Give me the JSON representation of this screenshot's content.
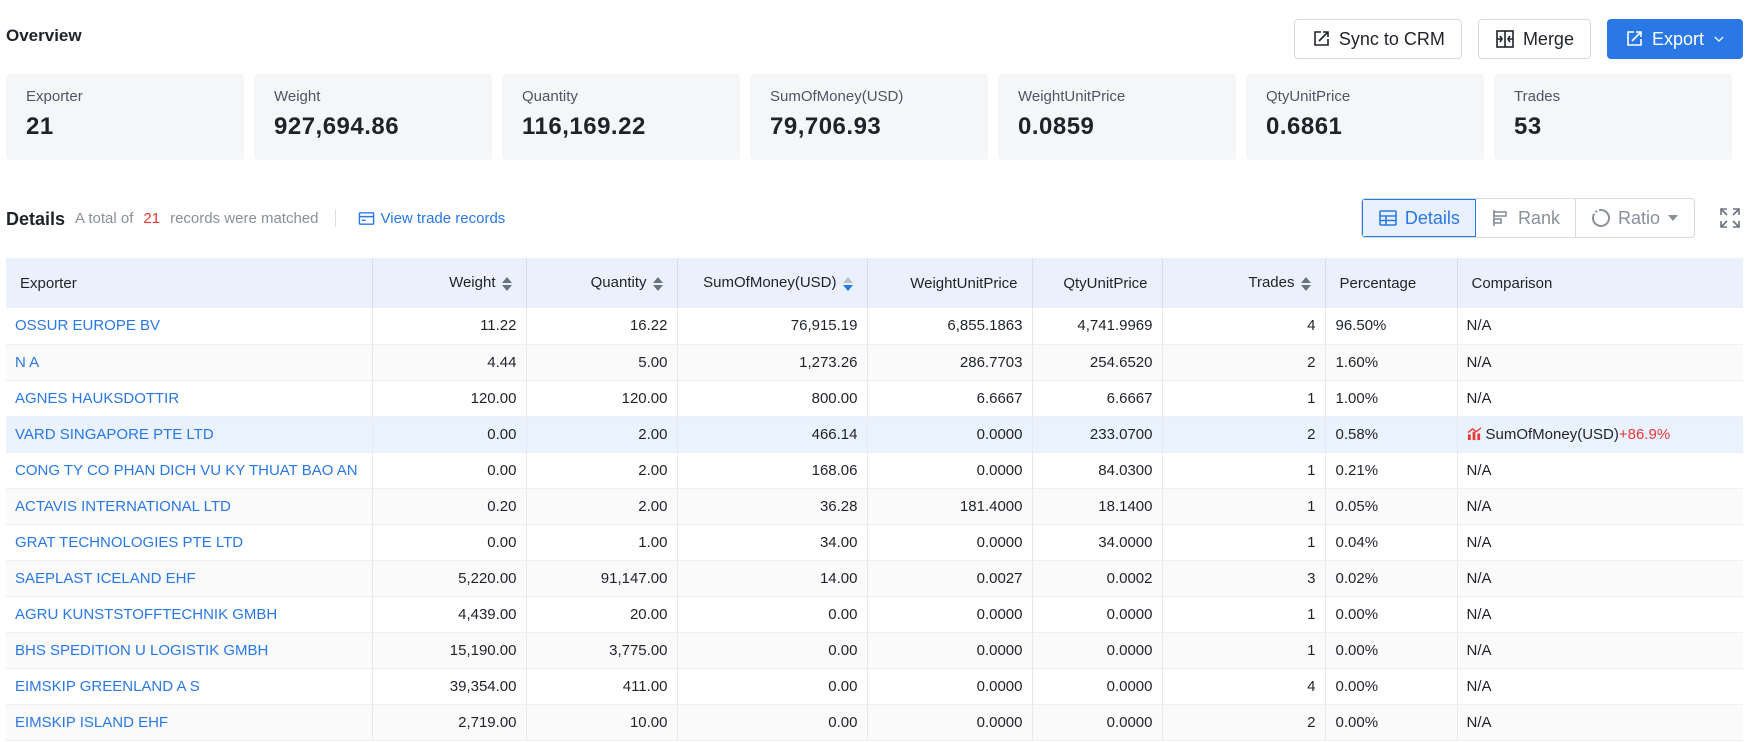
{
  "overview": {
    "title": "Overview"
  },
  "actions": {
    "sync": "Sync to CRM",
    "merge": "Merge",
    "export": "Export"
  },
  "stats": [
    {
      "label": "Exporter",
      "value": "21"
    },
    {
      "label": "Weight",
      "value": "927,694.86"
    },
    {
      "label": "Quantity",
      "value": "116,169.22"
    },
    {
      "label": "SumOfMoney(USD)",
      "value": "79,706.93"
    },
    {
      "label": "WeightUnitPrice",
      "value": "0.0859"
    },
    {
      "label": "QtyUnitPrice",
      "value": "0.6861"
    },
    {
      "label": "Trades",
      "value": "53"
    }
  ],
  "details": {
    "title": "Details",
    "match_prefix": "A total of",
    "match_count": "21",
    "match_suffix": "records were matched",
    "view_link": "View trade records",
    "views": {
      "details": "Details",
      "rank": "Rank",
      "ratio": "Ratio"
    }
  },
  "table": {
    "headers": {
      "exporter": "Exporter",
      "weight": "Weight",
      "quantity": "Quantity",
      "sum": "SumOfMoney(USD)",
      "wup": "WeightUnitPrice",
      "qup": "QtyUnitPrice",
      "trades": "Trades",
      "percentage": "Percentage",
      "comparison": "Comparison"
    },
    "rows": [
      {
        "exporter": "OSSUR EUROPE BV",
        "weight": "11.22",
        "quantity": "16.22",
        "sum": "76,915.19",
        "wup": "6,855.1863",
        "qup": "4,741.9969",
        "trades": "4",
        "percentage": "96.50%",
        "comparison": "N/A"
      },
      {
        "exporter": "N A",
        "weight": "4.44",
        "quantity": "5.00",
        "sum": "1,273.26",
        "wup": "286.7703",
        "qup": "254.6520",
        "trades": "2",
        "percentage": "1.60%",
        "comparison": "N/A"
      },
      {
        "exporter": "AGNES HAUKSDOTTIR",
        "weight": "120.00",
        "quantity": "120.00",
        "sum": "800.00",
        "wup": "6.6667",
        "qup": "6.6667",
        "trades": "1",
        "percentage": "1.00%",
        "comparison": "N/A"
      },
      {
        "exporter": "VARD SINGAPORE PTE LTD",
        "weight": "0.00",
        "quantity": "2.00",
        "sum": "466.14",
        "wup": "0.0000",
        "qup": "233.0700",
        "trades": "2",
        "percentage": "0.58%",
        "comparison": "SumOfMoney(USD)",
        "comparison_change": "+86.9%"
      },
      {
        "exporter": "CONG TY CO PHAN DICH VU KY THUAT BAO AN",
        "weight": "0.00",
        "quantity": "2.00",
        "sum": "168.06",
        "wup": "0.0000",
        "qup": "84.0300",
        "trades": "1",
        "percentage": "0.21%",
        "comparison": "N/A"
      },
      {
        "exporter": "ACTAVIS INTERNATIONAL LTD",
        "weight": "0.20",
        "quantity": "2.00",
        "sum": "36.28",
        "wup": "181.4000",
        "qup": "18.1400",
        "trades": "1",
        "percentage": "0.05%",
        "comparison": "N/A"
      },
      {
        "exporter": "GRAT TECHNOLOGIES PTE LTD",
        "weight": "0.00",
        "quantity": "1.00",
        "sum": "34.00",
        "wup": "0.0000",
        "qup": "34.0000",
        "trades": "1",
        "percentage": "0.04%",
        "comparison": "N/A"
      },
      {
        "exporter": "SAEPLAST ICELAND EHF",
        "weight": "5,220.00",
        "quantity": "91,147.00",
        "sum": "14.00",
        "wup": "0.0027",
        "qup": "0.0002",
        "trades": "3",
        "percentage": "0.02%",
        "comparison": "N/A"
      },
      {
        "exporter": "AGRU KUNSTSTOFFTECHNIK GMBH",
        "weight": "4,439.00",
        "quantity": "20.00",
        "sum": "0.00",
        "wup": "0.0000",
        "qup": "0.0000",
        "trades": "1",
        "percentage": "0.00%",
        "comparison": "N/A"
      },
      {
        "exporter": "BHS SPEDITION U LOGISTIK GMBH",
        "weight": "15,190.00",
        "quantity": "3,775.00",
        "sum": "0.00",
        "wup": "0.0000",
        "qup": "0.0000",
        "trades": "1",
        "percentage": "0.00%",
        "comparison": "N/A"
      },
      {
        "exporter": "EIMSKIP GREENLAND A S",
        "weight": "39,354.00",
        "quantity": "411.00",
        "sum": "0.00",
        "wup": "0.0000",
        "qup": "0.0000",
        "trades": "4",
        "percentage": "0.00%",
        "comparison": "N/A"
      },
      {
        "exporter": "EIMSKIP ISLAND EHF",
        "weight": "2,719.00",
        "quantity": "10.00",
        "sum": "0.00",
        "wup": "0.0000",
        "qup": "0.0000",
        "trades": "2",
        "percentage": "0.00%",
        "comparison": "N/A"
      }
    ]
  }
}
